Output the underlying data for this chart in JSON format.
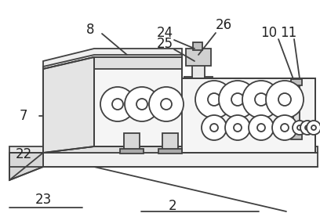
{
  "bg_color": "#ffffff",
  "lc": "#404040",
  "lw": 1.3,
  "thin": 0.7,
  "fs": 12
}
